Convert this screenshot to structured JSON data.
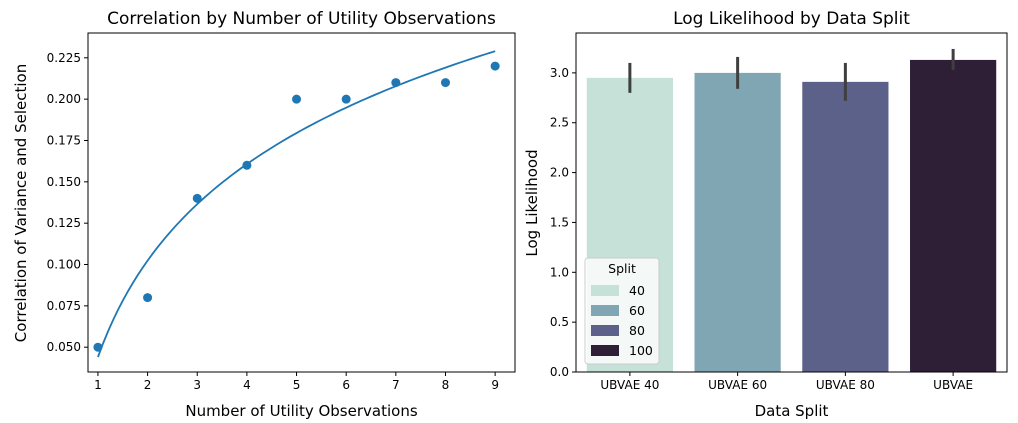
{
  "chart_data": [
    {
      "type": "scatter",
      "title": "Correlation by Number of Utility Observations",
      "xlabel": "Number of Utility Observations",
      "ylabel": "Correlation of Variance and Selection",
      "xlim": [
        0.8,
        9.4
      ],
      "ylim": [
        0.035,
        0.24
      ],
      "x_ticks": [
        1,
        2,
        3,
        4,
        5,
        6,
        7,
        8,
        9
      ],
      "y_ticks": [
        0.05,
        0.075,
        0.1,
        0.125,
        0.15,
        0.175,
        0.2,
        0.225
      ],
      "y_tick_labels": [
        "0.050",
        "0.075",
        "0.100",
        "0.125",
        "0.150",
        "0.175",
        "0.200",
        "0.225"
      ],
      "color": "#1f77b4",
      "points": [
        {
          "x": 1,
          "y": 0.05
        },
        {
          "x": 2,
          "y": 0.08
        },
        {
          "x": 3,
          "y": 0.14
        },
        {
          "x": 4,
          "y": 0.16
        },
        {
          "x": 5,
          "y": 0.2
        },
        {
          "x": 6,
          "y": 0.2
        },
        {
          "x": 7,
          "y": 0.21
        },
        {
          "x": 8,
          "y": 0.21
        },
        {
          "x": 9,
          "y": 0.22
        }
      ],
      "fit_curve": {
        "kind": "logarithmic",
        "x_range": [
          1,
          9
        ],
        "y_start": 0.044,
        "y_end": 0.229
      },
      "grid": false
    },
    {
      "type": "bar",
      "title": "Log Likelihood by Data Split",
      "xlabel": "Data Split",
      "ylabel": "Log Likelihood",
      "categories": [
        "UBVAE 40",
        "UBVAE 60",
        "UBVAE 80",
        "UBVAE"
      ],
      "values": [
        2.95,
        3.0,
        2.91,
        3.13
      ],
      "error_bars": [
        [
          2.8,
          3.1
        ],
        [
          2.84,
          3.16
        ],
        [
          2.72,
          3.1
        ],
        [
          3.03,
          3.24
        ]
      ],
      "colors": [
        "#c5e1d8",
        "#81a6b3",
        "#5c6189",
        "#2e1f37"
      ],
      "ylim": [
        0,
        3.4
      ],
      "y_ticks": [
        0.0,
        0.5,
        1.0,
        1.5,
        2.0,
        2.5,
        3.0
      ],
      "y_tick_labels": [
        "0.0",
        "0.5",
        "1.0",
        "1.5",
        "2.0",
        "2.5",
        "3.0"
      ],
      "legend": {
        "title": "Split",
        "position": "bottom-left",
        "entries": [
          {
            "label": "40",
            "color": "#c5e1d8"
          },
          {
            "label": "60",
            "color": "#81a6b3"
          },
          {
            "label": "80",
            "color": "#5c6189"
          },
          {
            "label": "100",
            "color": "#2e1f37"
          }
        ]
      },
      "grid": false
    }
  ]
}
